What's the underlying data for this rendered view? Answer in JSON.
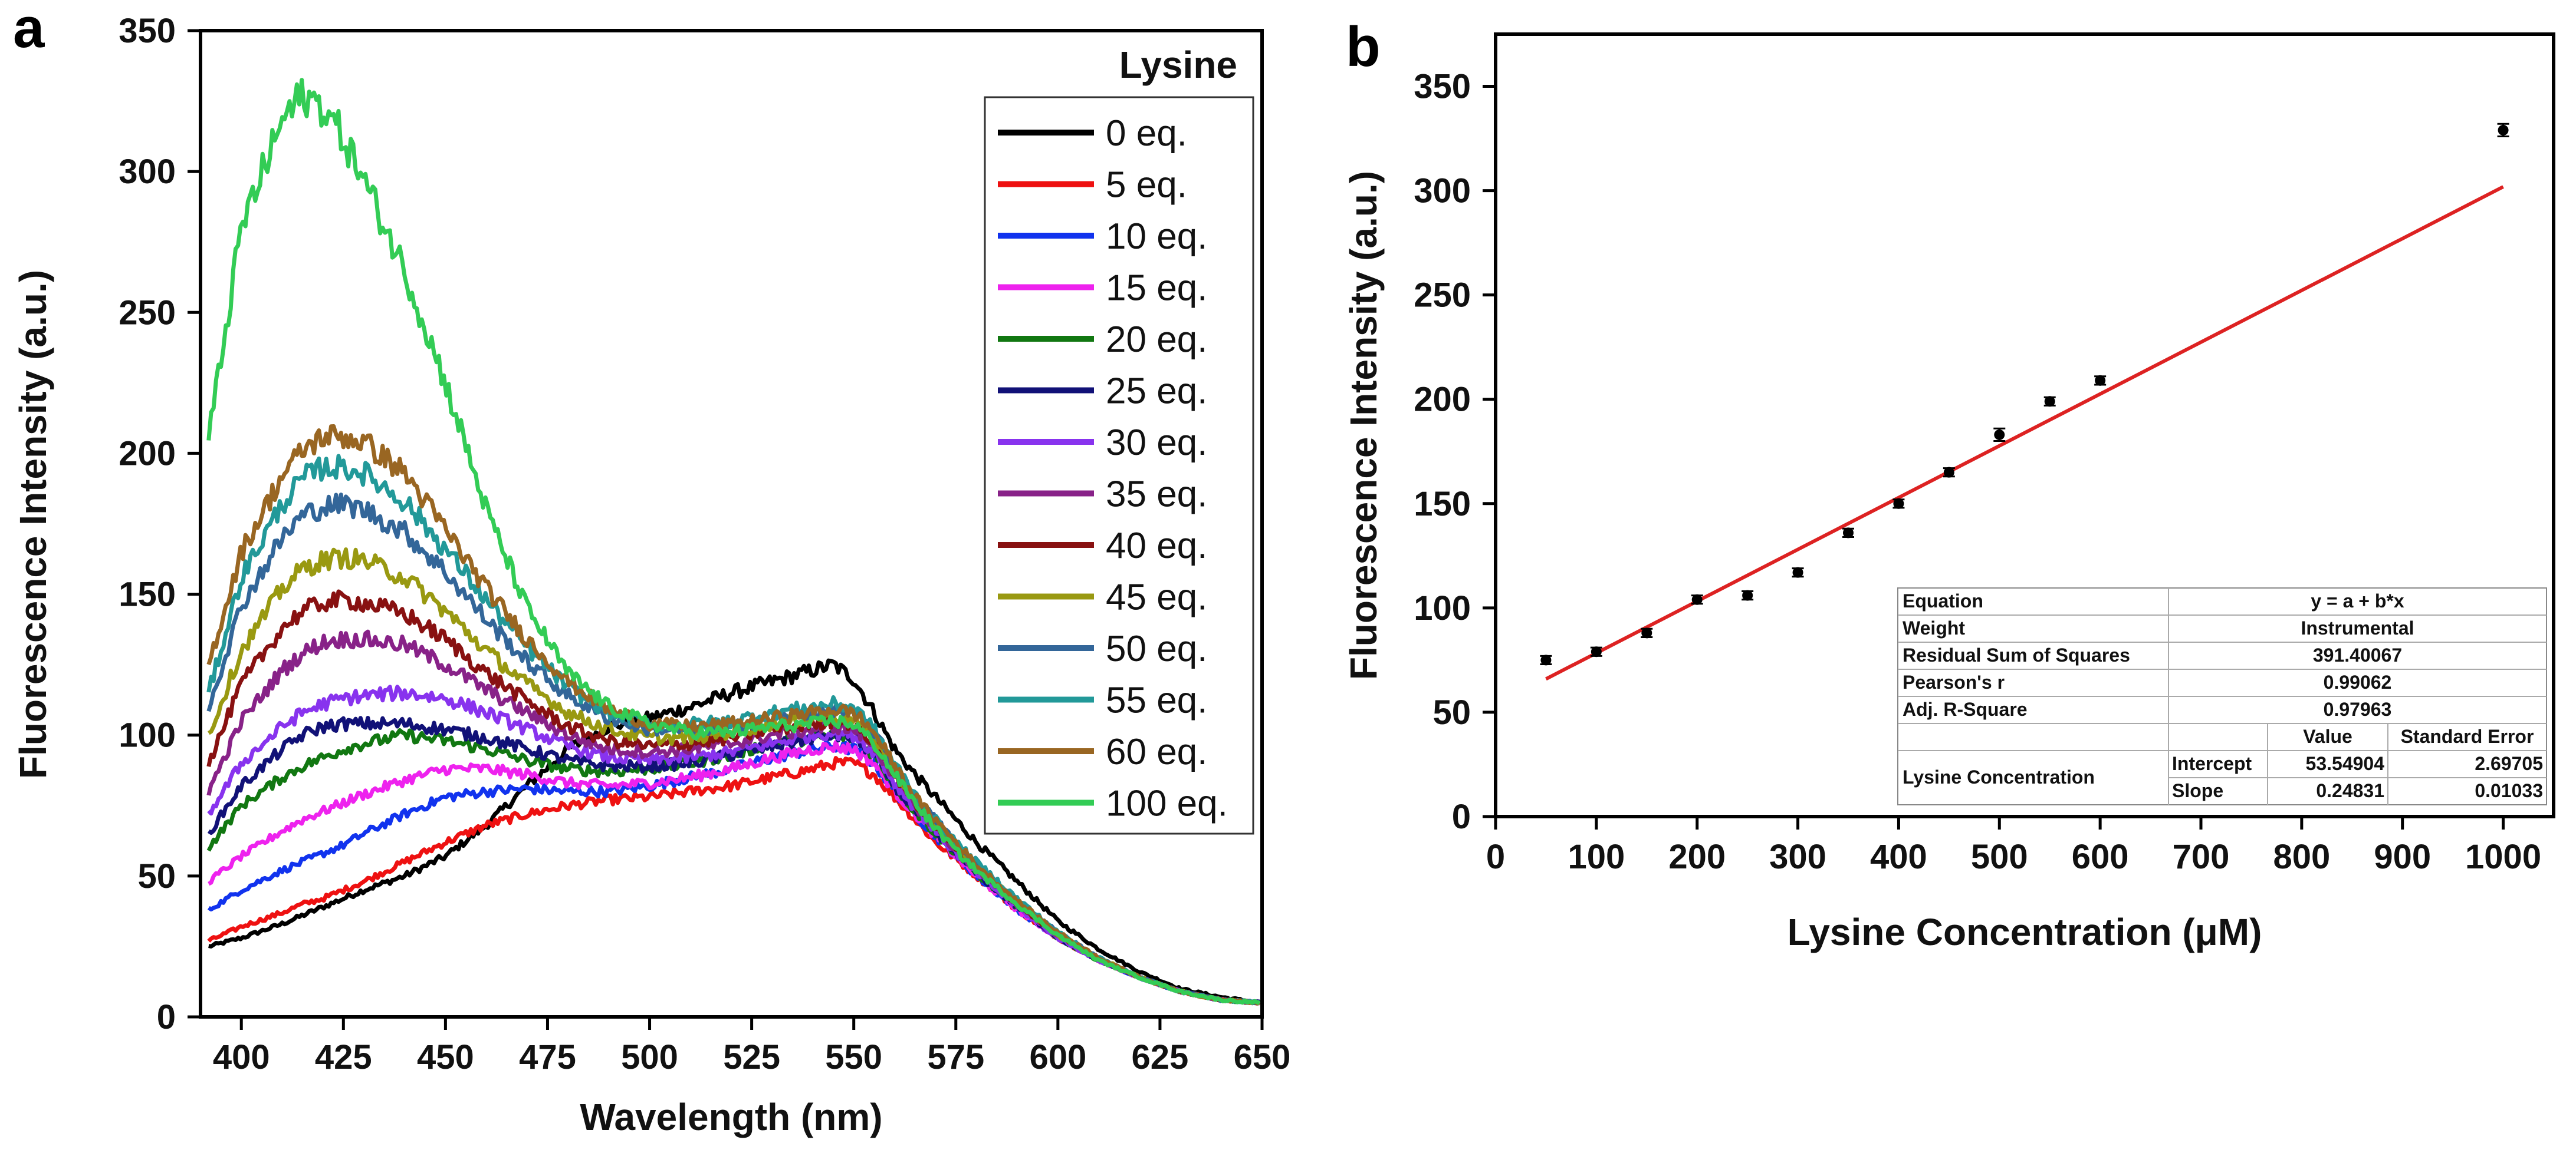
{
  "panel_a_letter": "a",
  "panel_b_letter": "b",
  "chart_data": [
    {
      "type": "line",
      "panel": "a",
      "title": "",
      "xlabel": "Wavelength (nm)",
      "ylabel": "Fluorescence Intensity (a.u.)",
      "xlim": [
        390,
        650
      ],
      "ylim": [
        0,
        350
      ],
      "xticks": [
        400,
        425,
        450,
        475,
        500,
        525,
        550,
        575,
        600,
        625,
        650
      ],
      "yticks": [
        0,
        50,
        100,
        150,
        200,
        250,
        300,
        350
      ],
      "legend_title": "Lysine",
      "legend_position": "top-right",
      "x": [
        392,
        400,
        410,
        415,
        420,
        425,
        430,
        440,
        450,
        460,
        470,
        480,
        490,
        500,
        510,
        520,
        530,
        540,
        545,
        550,
        555,
        560,
        565,
        570,
        575,
        580,
        590,
        600,
        610,
        620,
        630,
        640,
        650
      ],
      "series": [
        {
          "name": "0 eq.",
          "color": "#000000",
          "values": [
            25,
            28,
            33,
            36,
            39,
            42,
            45,
            50,
            57,
            68,
            82,
            95,
            103,
            106,
            110,
            115,
            119,
            123,
            125,
            120,
            108,
            95,
            86,
            78,
            70,
            62,
            48,
            34,
            24,
            16,
            10,
            7,
            5
          ]
        },
        {
          "name": "5 eq.",
          "color": "#ee1111",
          "values": [
            27,
            32,
            37,
            40,
            42,
            45,
            48,
            55,
            62,
            68,
            72,
            75,
            77,
            78,
            80,
            82,
            85,
            88,
            90,
            90,
            86,
            78,
            70,
            62,
            56,
            50,
            38,
            28,
            20,
            14,
            9,
            6,
            5
          ]
        },
        {
          "name": "10 eq.",
          "color": "#1133ee",
          "values": [
            38,
            45,
            52,
            55,
            58,
            61,
            65,
            72,
            78,
            80,
            81,
            80,
            80,
            82,
            85,
            88,
            92,
            95,
            96,
            95,
            90,
            80,
            72,
            64,
            57,
            50,
            38,
            28,
            20,
            14,
            9,
            6,
            5
          ]
        },
        {
          "name": "15 eq.",
          "color": "#ee22ee",
          "values": [
            48,
            57,
            66,
            70,
            73,
            76,
            79,
            84,
            88,
            88,
            86,
            83,
            82,
            83,
            85,
            88,
            92,
            95,
            96,
            95,
            90,
            80,
            72,
            64,
            57,
            50,
            38,
            28,
            20,
            14,
            9,
            6,
            5
          ]
        },
        {
          "name": "20 eq.",
          "color": "#117711",
          "values": [
            60,
            75,
            85,
            89,
            92,
            95,
            97,
            100,
            98,
            95,
            91,
            88,
            87,
            88,
            90,
            93,
            97,
            99,
            100,
            99,
            93,
            82,
            73,
            65,
            58,
            51,
            39,
            28,
            20,
            14,
            9,
            6,
            5
          ]
        },
        {
          "name": "25 eq.",
          "color": "#111177",
          "values": [
            65,
            82,
            95,
            100,
            103,
            104,
            104,
            104,
            102,
            99,
            95,
            91,
            89,
            89,
            90,
            93,
            96,
            99,
            100,
            99,
            93,
            82,
            73,
            65,
            58,
            51,
            39,
            28,
            20,
            14,
            9,
            6,
            5
          ]
        },
        {
          "name": "30 eq.",
          "color": "#8833ee",
          "values": [
            72,
            90,
            103,
            108,
            111,
            113,
            114,
            115,
            113,
            108,
            102,
            96,
            92,
            91,
            92,
            94,
            97,
            100,
            101,
            100,
            94,
            83,
            74,
            66,
            58,
            51,
            39,
            28,
            20,
            14,
            9,
            6,
            5
          ]
        },
        {
          "name": "35 eq.",
          "color": "#882288",
          "values": [
            80,
            105,
            123,
            129,
            133,
            134,
            134,
            132,
            125,
            116,
            108,
            100,
            95,
            94,
            95,
            97,
            100,
            102,
            103,
            102,
            96,
            85,
            75,
            67,
            59,
            52,
            40,
            29,
            21,
            14,
            9,
            6,
            5
          ]
        },
        {
          "name": "40 eq.",
          "color": "#881111",
          "values": [
            90,
            118,
            138,
            144,
            147,
            148,
            147,
            143,
            134,
            122,
            112,
            103,
            98,
            96,
            97,
            99,
            102,
            104,
            105,
            104,
            97,
            86,
            76,
            68,
            60,
            53,
            40,
            29,
            21,
            14,
            9,
            6,
            5
          ]
        },
        {
          "name": "45 eq.",
          "color": "#999911",
          "values": [
            100,
            130,
            152,
            159,
            162,
            163,
            162,
            156,
            144,
            130,
            118,
            108,
            102,
            99,
            99,
            101,
            104,
            106,
            107,
            106,
            99,
            87,
            77,
            69,
            61,
            53,
            41,
            29,
            21,
            14,
            9,
            6,
            5
          ]
        },
        {
          "name": "50 eq.",
          "color": "#336699",
          "values": [
            110,
            146,
            170,
            178,
            181,
            182,
            180,
            172,
            158,
            141,
            126,
            114,
            106,
            102,
            102,
            103,
            106,
            108,
            109,
            108,
            101,
            89,
            78,
            70,
            62,
            54,
            41,
            30,
            21,
            14,
            9,
            6,
            5
          ]
        },
        {
          "name": "55 eq.",
          "color": "#229999",
          "values": [
            115,
            156,
            182,
            191,
            195,
            195,
            193,
            183,
            166,
            148,
            131,
            117,
            108,
            104,
            104,
            105,
            108,
            110,
            111,
            110,
            102,
            90,
            79,
            70,
            62,
            55,
            42,
            30,
            21,
            14,
            9,
            6,
            5
          ]
        },
        {
          "name": "60 eq.",
          "color": "#996622",
          "values": [
            125,
            165,
            192,
            201,
            206,
            206,
            204,
            193,
            173,
            152,
            134,
            119,
            109,
            104,
            103,
            104,
            106,
            108,
            109,
            108,
            101,
            89,
            78,
            70,
            62,
            54,
            41,
            30,
            21,
            14,
            9,
            6,
            5
          ]
        },
        {
          "name": "100 eq.",
          "color": "#33cc55",
          "values": [
            205,
            280,
            318,
            327,
            323,
            312,
            297,
            265,
            225,
            180,
            145,
            122,
            110,
            104,
            101,
            101,
            103,
            104,
            105,
            104,
            97,
            86,
            76,
            67,
            59,
            52,
            40,
            29,
            20,
            14,
            9,
            6,
            5
          ]
        }
      ]
    },
    {
      "type": "scatter",
      "panel": "b",
      "title": "",
      "xlabel": "Lysine Concentration (μM)",
      "ylabel": "Fluorescence Intensity (a.u.)",
      "xlim": [
        0,
        1050
      ],
      "ylim": [
        0,
        375
      ],
      "xticks": [
        0,
        100,
        200,
        300,
        400,
        500,
        600,
        700,
        800,
        900,
        1000
      ],
      "yticks": [
        0,
        50,
        100,
        150,
        200,
        250,
        300,
        350
      ],
      "x": [
        50,
        100,
        150,
        200,
        250,
        300,
        350,
        400,
        450,
        500,
        550,
        600,
        1000
      ],
      "y": [
        75,
        79,
        88,
        104,
        106,
        117,
        136,
        150,
        165,
        183,
        199,
        209,
        329
      ],
      "error": [
        2,
        2,
        2,
        2,
        2,
        2,
        2,
        2,
        2,
        3,
        2,
        2,
        3
      ],
      "fit": {
        "intercept": 53.54904,
        "slope": 0.24831,
        "x_range": [
          50,
          1000
        ],
        "color": "#dd2222"
      },
      "fit_table": {
        "rows": [
          [
            "Equation",
            "y = a + b*x"
          ],
          [
            "Weight",
            "Instrumental"
          ],
          [
            "Residual Sum of Squares",
            "391.40067"
          ],
          [
            "Pearson's r",
            "0.99062"
          ],
          [
            "Adj. R-Square",
            "0.97963"
          ]
        ],
        "param_header": [
          "",
          "",
          "Value",
          "Standard Error"
        ],
        "param_group": "Lysine Concentration",
        "params": [
          [
            "Intercept",
            "53.54904",
            "2.69705"
          ],
          [
            "Slope",
            "0.24831",
            "0.01033"
          ]
        ]
      }
    }
  ]
}
